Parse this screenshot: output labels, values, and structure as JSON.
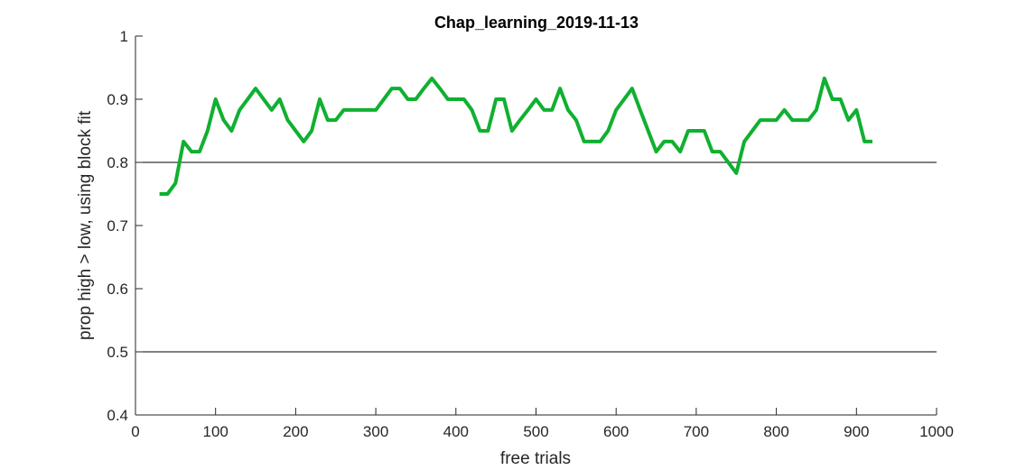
{
  "chart_data": {
    "type": "line",
    "title": "Chap_learning_2019-11-13",
    "xlabel": "free trials",
    "ylabel": "prop high > low, using block fit",
    "xlim": [
      0,
      1000
    ],
    "ylim": [
      0.4,
      1
    ],
    "x_ticks": [
      0,
      100,
      200,
      300,
      400,
      500,
      600,
      700,
      800,
      900,
      1000
    ],
    "y_ticks": [
      0.4,
      0.5,
      0.6,
      0.7,
      0.8,
      0.9,
      1
    ],
    "x_tick_labels": [
      "0",
      "100",
      "200",
      "300",
      "400",
      "500",
      "600",
      "700",
      "800",
      "900",
      "1000"
    ],
    "y_tick_labels": [
      "0.4",
      "0.5",
      "0.6",
      "0.7",
      "0.8",
      "0.9",
      "1"
    ],
    "reference_lines": [
      0.5,
      0.8
    ],
    "grid": false,
    "series": [
      {
        "color": "#10b030",
        "x": [
          30,
          40,
          50,
          60,
          70,
          80,
          90,
          100,
          110,
          120,
          130,
          140,
          150,
          160,
          170,
          180,
          190,
          200,
          210,
          220,
          230,
          240,
          250,
          260,
          270,
          280,
          290,
          300,
          310,
          320,
          330,
          340,
          350,
          360,
          370,
          380,
          390,
          400,
          410,
          420,
          430,
          440,
          450,
          460,
          470,
          480,
          490,
          500,
          510,
          520,
          530,
          540,
          550,
          560,
          570,
          580,
          590,
          600,
          610,
          620,
          630,
          640,
          650,
          660,
          670,
          680,
          690,
          700,
          710,
          720,
          730,
          740,
          750,
          760,
          770,
          780,
          790,
          800,
          810,
          820,
          830,
          840,
          850,
          860,
          870,
          880,
          890,
          900,
          910,
          920
        ],
        "y": [
          0.75,
          0.75,
          0.767,
          0.833,
          0.817,
          0.817,
          0.85,
          0.9,
          0.867,
          0.85,
          0.883,
          0.9,
          0.917,
          0.9,
          0.883,
          0.9,
          0.867,
          0.85,
          0.833,
          0.85,
          0.9,
          0.867,
          0.867,
          0.883,
          0.883,
          0.883,
          0.883,
          0.883,
          0.9,
          0.917,
          0.917,
          0.9,
          0.9,
          0.917,
          0.933,
          0.917,
          0.9,
          0.9,
          0.9,
          0.883,
          0.85,
          0.85,
          0.9,
          0.9,
          0.85,
          0.867,
          0.883,
          0.9,
          0.883,
          0.883,
          0.917,
          0.883,
          0.867,
          0.833,
          0.833,
          0.833,
          0.85,
          0.883,
          0.9,
          0.917,
          0.883,
          0.85,
          0.817,
          0.833,
          0.833,
          0.817,
          0.85,
          0.85,
          0.85,
          0.817,
          0.817,
          0.8,
          0.783,
          0.833,
          0.85,
          0.867,
          0.867,
          0.867,
          0.883,
          0.867,
          0.867,
          0.867,
          0.883,
          0.933,
          0.9,
          0.9,
          0.867,
          0.883,
          0.833,
          0.833
        ]
      }
    ]
  }
}
